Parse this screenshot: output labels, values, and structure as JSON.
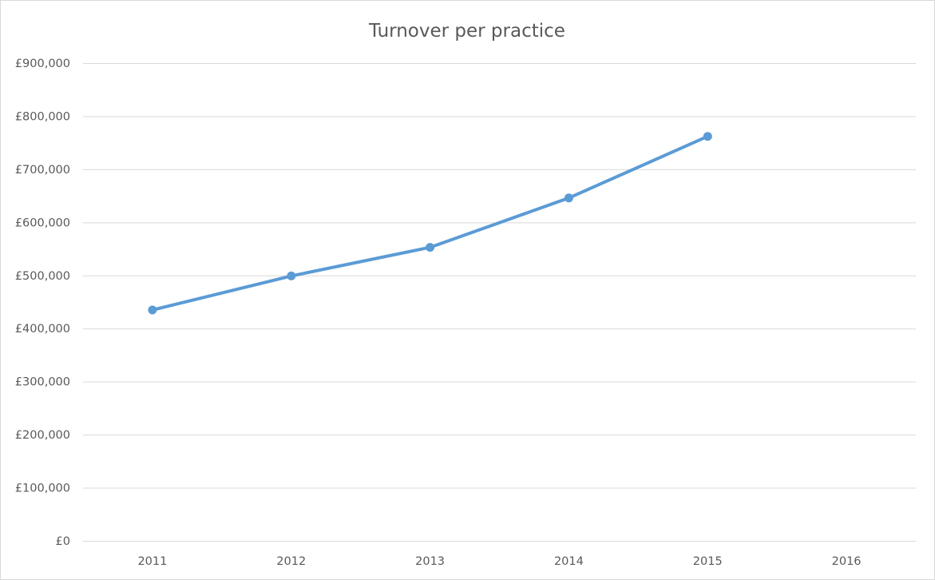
{
  "chart_data": {
    "type": "line",
    "title": "Turnover per practice",
    "xlabel": "",
    "ylabel": "",
    "categories": [
      "2011",
      "2012",
      "2013",
      "2014",
      "2015",
      "2016"
    ],
    "y_tick_labels": [
      "£0",
      "£100,000",
      "£200,000",
      "£300,000",
      "£400,000",
      "£500,000",
      "£600,000",
      "£700,000",
      "£800,000",
      "£900,000"
    ],
    "ylim": [
      0,
      900000
    ],
    "y_tick_step": 100000,
    "grid": true,
    "legend": "none",
    "series": [
      {
        "values": [
          435000,
          499000,
          553000,
          646000,
          762000,
          null
        ],
        "color": "#5b9bd5"
      }
    ]
  }
}
